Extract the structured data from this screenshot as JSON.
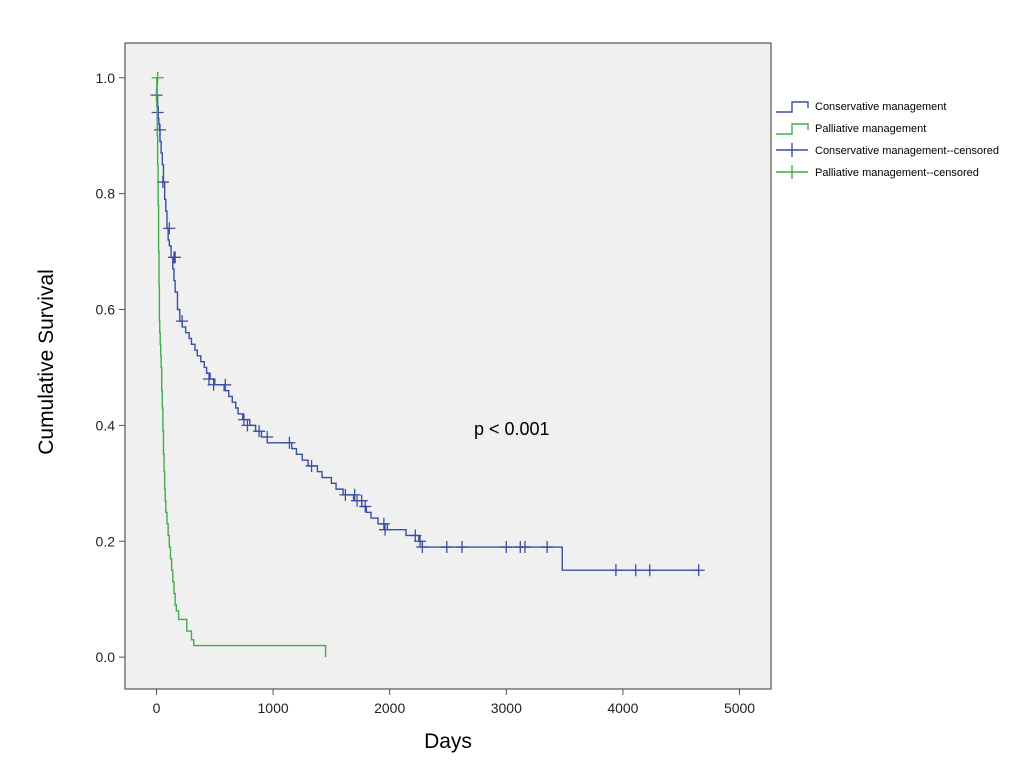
{
  "chart_data": {
    "type": "line",
    "subtype": "kaplan-meier",
    "title": "",
    "xlabel": "Days",
    "ylabel": "Cumulative Survival",
    "xlim": [
      -270,
      5270
    ],
    "ylim": [
      -0.055,
      1.06
    ],
    "xticks": [
      0,
      1000,
      2000,
      3000,
      4000,
      5000
    ],
    "yticks": [
      0.0,
      0.2,
      0.4,
      0.6,
      0.8,
      1.0
    ],
    "xtick_labels": [
      "0",
      "1000",
      "2000",
      "3000",
      "4000",
      "5000"
    ],
    "ytick_labels": [
      "0.0",
      "0.2",
      "0.4",
      "0.6",
      "0.8",
      "1.0"
    ],
    "grid": false,
    "legend_position": "right",
    "annotation": "p < 0.001",
    "plot_background": "#f0f0f0",
    "legend": [
      {
        "label": "Conservative management",
        "kind": "step",
        "color": "#3a4fa3"
      },
      {
        "label": "Palliative management",
        "kind": "step",
        "color": "#3fae49"
      },
      {
        "label": "Conservative management--censored",
        "kind": "cross",
        "color": "#3a4fa3"
      },
      {
        "label": "Palliative management--censored",
        "kind": "cross",
        "color": "#3fae49"
      }
    ],
    "series": [
      {
        "name": "Conservative management",
        "color": "#3a4fa3",
        "steps": [
          [
            0,
            1.0
          ],
          [
            5,
            0.97
          ],
          [
            10,
            0.95
          ],
          [
            15,
            0.93
          ],
          [
            20,
            0.92
          ],
          [
            25,
            0.91
          ],
          [
            30,
            0.89
          ],
          [
            40,
            0.87
          ],
          [
            50,
            0.85
          ],
          [
            60,
            0.82
          ],
          [
            70,
            0.79
          ],
          [
            80,
            0.77
          ],
          [
            90,
            0.74
          ],
          [
            100,
            0.72
          ],
          [
            110,
            0.71
          ],
          [
            125,
            0.69
          ],
          [
            140,
            0.67
          ],
          [
            150,
            0.65
          ],
          [
            160,
            0.63
          ],
          [
            180,
            0.6
          ],
          [
            200,
            0.58
          ],
          [
            220,
            0.57
          ],
          [
            250,
            0.56
          ],
          [
            280,
            0.55
          ],
          [
            300,
            0.54
          ],
          [
            330,
            0.53
          ],
          [
            350,
            0.52
          ],
          [
            380,
            0.51
          ],
          [
            410,
            0.5
          ],
          [
            430,
            0.49
          ],
          [
            460,
            0.48
          ],
          [
            500,
            0.47
          ],
          [
            580,
            0.46
          ],
          [
            620,
            0.45
          ],
          [
            650,
            0.44
          ],
          [
            680,
            0.43
          ],
          [
            700,
            0.42
          ],
          [
            740,
            0.41
          ],
          [
            800,
            0.4
          ],
          [
            850,
            0.39
          ],
          [
            900,
            0.38
          ],
          [
            950,
            0.37
          ],
          [
            1160,
            0.36
          ],
          [
            1200,
            0.35
          ],
          [
            1250,
            0.34
          ],
          [
            1300,
            0.33
          ],
          [
            1380,
            0.32
          ],
          [
            1420,
            0.31
          ],
          [
            1500,
            0.3
          ],
          [
            1540,
            0.29
          ],
          [
            1600,
            0.28
          ],
          [
            1690,
            0.27
          ],
          [
            1760,
            0.26
          ],
          [
            1800,
            0.25
          ],
          [
            1840,
            0.24
          ],
          [
            1900,
            0.23
          ],
          [
            1980,
            0.22
          ],
          [
            2140,
            0.21
          ],
          [
            2250,
            0.2
          ],
          [
            2280,
            0.19
          ],
          [
            3480,
            0.15
          ],
          [
            4650,
            0.15
          ]
        ],
        "censored": [
          [
            0,
            0.97
          ],
          [
            10,
            0.94
          ],
          [
            30,
            0.91
          ],
          [
            55,
            0.82
          ],
          [
            110,
            0.74
          ],
          [
            150,
            0.69
          ],
          [
            160,
            0.69
          ],
          [
            220,
            0.58
          ],
          [
            450,
            0.48
          ],
          [
            490,
            0.47
          ],
          [
            590,
            0.47
          ],
          [
            750,
            0.41
          ],
          [
            780,
            0.4
          ],
          [
            880,
            0.39
          ],
          [
            950,
            0.38
          ],
          [
            1140,
            0.37
          ],
          [
            1330,
            0.33
          ],
          [
            1620,
            0.28
          ],
          [
            1700,
            0.28
          ],
          [
            1720,
            0.27
          ],
          [
            1760,
            0.27
          ],
          [
            1790,
            0.26
          ],
          [
            1950,
            0.23
          ],
          [
            1960,
            0.22
          ],
          [
            2220,
            0.21
          ],
          [
            2260,
            0.2
          ],
          [
            2280,
            0.19
          ],
          [
            2490,
            0.19
          ],
          [
            2620,
            0.19
          ],
          [
            3000,
            0.19
          ],
          [
            3120,
            0.19
          ],
          [
            3160,
            0.19
          ],
          [
            3350,
            0.19
          ],
          [
            3940,
            0.15
          ],
          [
            4110,
            0.15
          ],
          [
            4230,
            0.15
          ],
          [
            4650,
            0.15
          ]
        ]
      },
      {
        "name": "Palliative management",
        "color": "#3fae49",
        "steps": [
          [
            0,
            1.0
          ],
          [
            3,
            0.95
          ],
          [
            6,
            0.9
          ],
          [
            10,
            0.85
          ],
          [
            14,
            0.78
          ],
          [
            18,
            0.7
          ],
          [
            22,
            0.64
          ],
          [
            25,
            0.58
          ],
          [
            28,
            0.56
          ],
          [
            32,
            0.54
          ],
          [
            36,
            0.52
          ],
          [
            40,
            0.5
          ],
          [
            45,
            0.46
          ],
          [
            50,
            0.43
          ],
          [
            55,
            0.39
          ],
          [
            60,
            0.35
          ],
          [
            65,
            0.32
          ],
          [
            70,
            0.29
          ],
          [
            75,
            0.27
          ],
          [
            80,
            0.25
          ],
          [
            90,
            0.23
          ],
          [
            100,
            0.21
          ],
          [
            110,
            0.19
          ],
          [
            120,
            0.17
          ],
          [
            130,
            0.15
          ],
          [
            140,
            0.13
          ],
          [
            150,
            0.11
          ],
          [
            160,
            0.09
          ],
          [
            170,
            0.08
          ],
          [
            190,
            0.065
          ],
          [
            260,
            0.045
          ],
          [
            300,
            0.03
          ],
          [
            320,
            0.02
          ],
          [
            1450,
            0.02
          ],
          [
            1450,
            0.0
          ]
        ],
        "censored": [
          [
            10,
            1.0
          ]
        ]
      }
    ]
  }
}
